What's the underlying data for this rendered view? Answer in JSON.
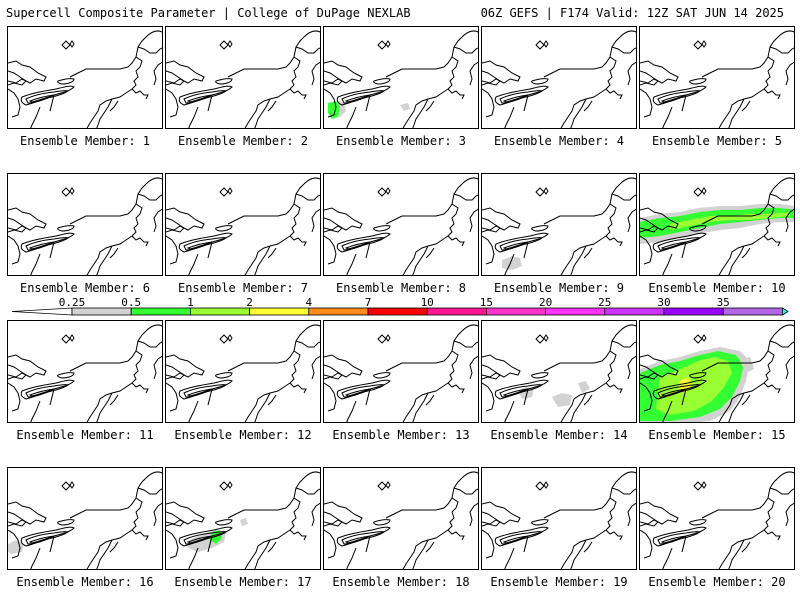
{
  "header": {
    "title_left": "Supercell Composite Parameter | College of DuPage NEXLAB",
    "title_right": "06Z GEFS | F174 Valid: 12Z SAT JUN 14 2025"
  },
  "member_label_prefix": "Ensemble Member: ",
  "members": [
    {
      "number": "1",
      "shading": []
    },
    {
      "number": "2",
      "shading": []
    },
    {
      "number": "3",
      "shading": [
        "light-gray",
        "green"
      ]
    },
    {
      "number": "4",
      "shading": []
    },
    {
      "number": "5",
      "shading": []
    },
    {
      "number": "6",
      "shading": []
    },
    {
      "number": "7",
      "shading": []
    },
    {
      "number": "8",
      "shading": []
    },
    {
      "number": "9",
      "shading": [
        "light-gray"
      ]
    },
    {
      "number": "10",
      "shading": [
        "light-gray",
        "green",
        "light-green"
      ]
    },
    {
      "number": "11",
      "shading": []
    },
    {
      "number": "12",
      "shading": []
    },
    {
      "number": "13",
      "shading": []
    },
    {
      "number": "14",
      "shading": [
        "light-gray"
      ]
    },
    {
      "number": "15",
      "shading": [
        "light-gray",
        "green",
        "light-green",
        "yellow"
      ]
    },
    {
      "number": "16",
      "shading": [
        "light-gray"
      ]
    },
    {
      "number": "17",
      "shading": [
        "light-gray",
        "green"
      ]
    },
    {
      "number": "18",
      "shading": []
    },
    {
      "number": "19",
      "shading": []
    },
    {
      "number": "20",
      "shading": []
    }
  ],
  "legend": {
    "ticks": [
      "0.25",
      "0.5",
      "1",
      "2",
      "4",
      "7",
      "10",
      "15",
      "20",
      "25",
      "30",
      "35"
    ],
    "colors": [
      "#d2d2d2",
      "#33ff33",
      "#99ff33",
      "#ffff33",
      "#ff8c1a",
      "#ff0000",
      "#ff1493",
      "#ff33cc",
      "#ff33ff",
      "#cc33ff",
      "#9900ff",
      "#b266e6",
      "#33ffff"
    ]
  },
  "shade_colors": {
    "light-gray": "#d2d2d2",
    "green": "#33ff33",
    "light-green": "#99ff33",
    "yellow": "#ffff33"
  }
}
